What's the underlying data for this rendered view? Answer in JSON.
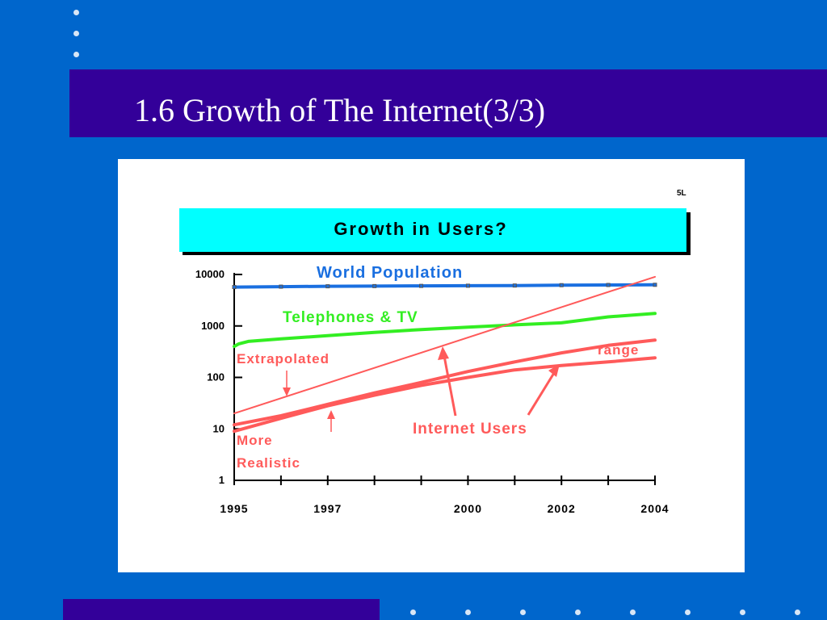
{
  "slide": {
    "title": "1.6 Growth of The Internet(3/3)"
  },
  "colors": {
    "background": "#0066cc",
    "bar": "#330099",
    "panel": "#ffffff",
    "banner": "#00ffff",
    "world_population": "#1a6fe0",
    "telephones_tv": "#33ee22",
    "internet_users": "#ff5a5a"
  },
  "chart_data": {
    "type": "line",
    "corner_mark": "5L",
    "title": "Growth in Users?",
    "yscale": "log",
    "ylim": [
      1,
      10000
    ],
    "xlim": [
      1995,
      2004
    ],
    "y_ticks": [
      {
        "value": 1,
        "label": "1"
      },
      {
        "value": 10,
        "label": "10"
      },
      {
        "value": 100,
        "label": "100"
      },
      {
        "value": 1000,
        "label": "1000"
      },
      {
        "value": 10000,
        "label": "10000"
      }
    ],
    "x_ticks": [
      {
        "value": 1995,
        "label": "1995"
      },
      {
        "value": 1997,
        "label": "1997"
      },
      {
        "value": 2000,
        "label": "2000"
      },
      {
        "value": 2002,
        "label": "2002"
      },
      {
        "value": 2004,
        "label": "2004"
      }
    ],
    "series": [
      {
        "key": "world_population",
        "name": "World Population",
        "x": [
          1995,
          1996,
          1997,
          1998,
          1999,
          2000,
          2001,
          2002,
          2003,
          2004
        ],
        "y": [
          5700,
          5800,
          5900,
          5950,
          6000,
          6050,
          6100,
          6200,
          6250,
          6300
        ]
      },
      {
        "key": "telephones_tv",
        "name": "Telephones & TV",
        "x": [
          1995,
          1995.1,
          1995.3,
          1996,
          1997,
          1998,
          1999,
          2000,
          2001,
          2002,
          2003,
          2004
        ],
        "y": [
          400,
          450,
          500,
          560,
          650,
          750,
          850,
          950,
          1050,
          1150,
          1500,
          1750
        ]
      },
      {
        "key": "extrapolated",
        "name": "Extrapolated",
        "x": [
          1995,
          2004
        ],
        "y": [
          20,
          9000
        ]
      },
      {
        "key": "internet_upper",
        "name": "",
        "x": [
          1995,
          1996,
          1997,
          1998,
          1999,
          2000,
          2001,
          2002,
          2003,
          2004
        ],
        "y": [
          12,
          18,
          30,
          50,
          80,
          130,
          200,
          300,
          420,
          530
        ]
      },
      {
        "key": "internet_lower",
        "name": "",
        "x": [
          1995,
          1996,
          1997,
          1998,
          1999,
          2000,
          2001,
          2002,
          2003,
          2004
        ],
        "y": [
          9,
          16,
          28,
          45,
          70,
          100,
          140,
          170,
          200,
          240
        ]
      }
    ],
    "annotations": {
      "world_population": "World Population",
      "telephones_tv": "Telephones & TV",
      "extrapolated": "Extrapolated",
      "more_realistic_line1": "More",
      "more_realistic_line2": "Realistic",
      "internet_users": "Internet Users",
      "range": "range"
    }
  }
}
